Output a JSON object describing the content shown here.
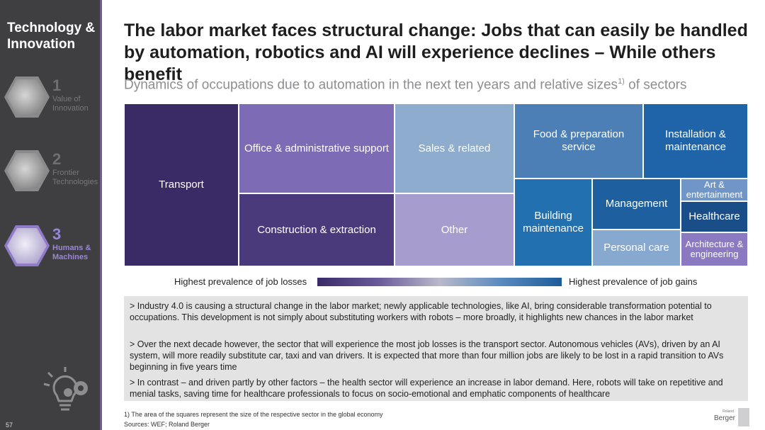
{
  "sidebar": {
    "title": "Technology & Innovation",
    "items": [
      {
        "num": "1",
        "label": "Value of Innovation",
        "active": false
      },
      {
        "num": "2",
        "label": "Frontier Technologies",
        "active": false
      },
      {
        "num": "3",
        "label": "Humans & Machines",
        "active": true
      }
    ],
    "page_number": "57"
  },
  "header": {
    "title": "The labor market faces structural change: Jobs that can easily be handled by automation, robotics and AI will experience declines – While others benefit",
    "subtitle": "Dynamics of occupations due to automation in the next ten years and relative sizes",
    "subtitle_sup": "1)",
    "subtitle_tail": " of sectors"
  },
  "treemap": {
    "tiles": [
      {
        "label": "Transport",
        "color": "#3a2a65"
      },
      {
        "label": "Office & administrative support",
        "color": "#7d6cb5"
      },
      {
        "label": "Construction & extraction",
        "color": "#4a3a7c"
      },
      {
        "label": "Sales & related",
        "color": "#8eaccd"
      },
      {
        "label": "Other",
        "color": "#a69ccd"
      },
      {
        "label": "Food & preparation service",
        "color": "#4b7fb5"
      },
      {
        "label": "Installation & maintenance",
        "color": "#1f64a8"
      },
      {
        "label": "Building maintenance",
        "color": "#2370b0"
      },
      {
        "label": "Management",
        "color": "#1d5f9f"
      },
      {
        "label": "Personal care",
        "color": "#88a9cf"
      },
      {
        "label": "Art & entertainment",
        "color": "#6f96c7"
      },
      {
        "label": "Healthcare",
        "color": "#194e89"
      },
      {
        "label": "Architecture & engineering",
        "color": "#8b79c2"
      }
    ]
  },
  "legend": {
    "left": "Highest prevalence of job losses",
    "right": "Highest prevalence of job gains"
  },
  "bullets": [
    "> Industry 4.0 is causing a structural change in the labor market; newly applicable technologies, like AI, bring considerable transformation potential to occupations. This development is not simply about substituting workers with robots – more broadly, it highlights new chances in the labor market",
    "> Over the next decade however, the sector that will experience the most job losses is the transport sector. Autonomous vehicles (AVs), driven by an AI system, will more readily substitute car, taxi and van drivers. It is expected that more than four million jobs are likely to be lost in a rapid transition to AVs beginning in five years time",
    "> In contrast – and driven partly by other factors – the health sector will experience an increase in labor demand. Here, robots will take on repetitive and menial tasks, saving time for healthcare professionals to focus on socio-emotional and emphatic components of healthcare"
  ],
  "footnotes": {
    "note": "1) The area of the squares represent the size of the respective sector in the global economy",
    "sources": "Sources: WEF; Roland Berger"
  },
  "logo": {
    "small": "Roland",
    "main": "Berger"
  }
}
